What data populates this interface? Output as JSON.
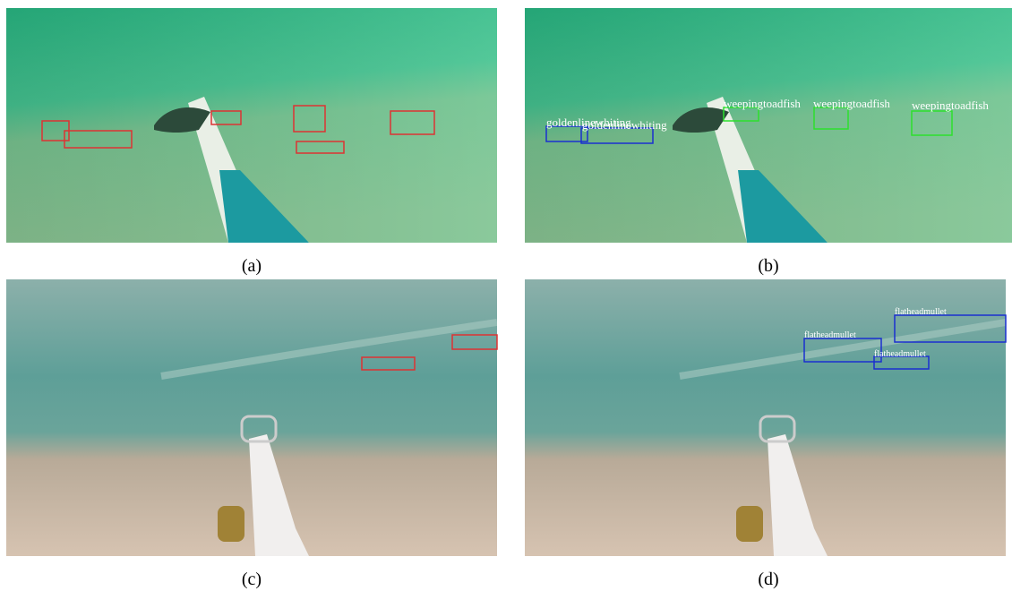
{
  "panels": [
    {
      "caption": "(a)"
    },
    {
      "caption": "(b)",
      "labels": [
        "goldenlinewhiting",
        "goldenlinewhiting",
        "weepingtoadfish",
        "weepingtoadfish",
        "weepingtoadfish"
      ]
    },
    {
      "caption": "(c)"
    },
    {
      "caption": "(d)",
      "labels": [
        "flatheadmullet",
        "flatheadmullet",
        "flatheadmullet"
      ]
    }
  ]
}
